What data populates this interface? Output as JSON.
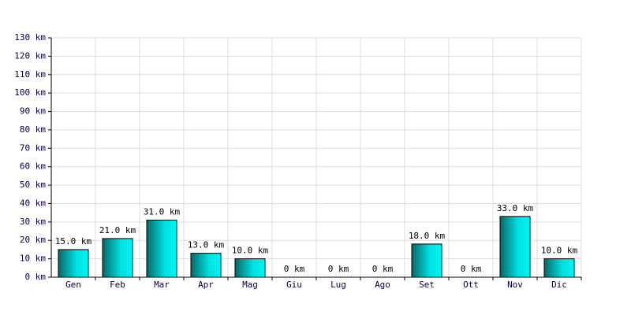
{
  "chart_data": {
    "type": "bar",
    "categories": [
      "Gen",
      "Feb",
      "Mar",
      "Apr",
      "Mag",
      "Giu",
      "Lug",
      "Ago",
      "Set",
      "Ott",
      "Nov",
      "Dic"
    ],
    "values": [
      15,
      21,
      31,
      13,
      10,
      0,
      0,
      0,
      18,
      0,
      33,
      10
    ],
    "value_labels": [
      "15.0 km",
      "21.0 km",
      "31.0 km",
      "13.0 km",
      "10.0 km",
      "0 km",
      "0 km",
      "0 km",
      "18.0 km",
      "0 km",
      "33.0 km",
      "10.0 km"
    ],
    "color": "#00e0e0",
    "ylim": [
      0,
      130
    ],
    "yticks": [
      {
        "value": 0,
        "label": "0 km"
      },
      {
        "value": 10,
        "label": "10 km"
      },
      {
        "value": 20,
        "label": "20 km"
      },
      {
        "value": 30,
        "label": "30 km"
      },
      {
        "value": 40,
        "label": "40 km"
      },
      {
        "value": 50,
        "label": "50 km"
      },
      {
        "value": 60,
        "label": "60 km"
      },
      {
        "value": 70,
        "label": "70 km"
      },
      {
        "value": 80,
        "label": "80 km"
      },
      {
        "value": 90,
        "label": "90 km"
      },
      {
        "value": 100,
        "label": "100 km"
      },
      {
        "value": 110,
        "label": "110 km"
      },
      {
        "value": 120,
        "label": "120 km"
      },
      {
        "value": 130,
        "label": "130 km"
      }
    ],
    "grid": true
  }
}
